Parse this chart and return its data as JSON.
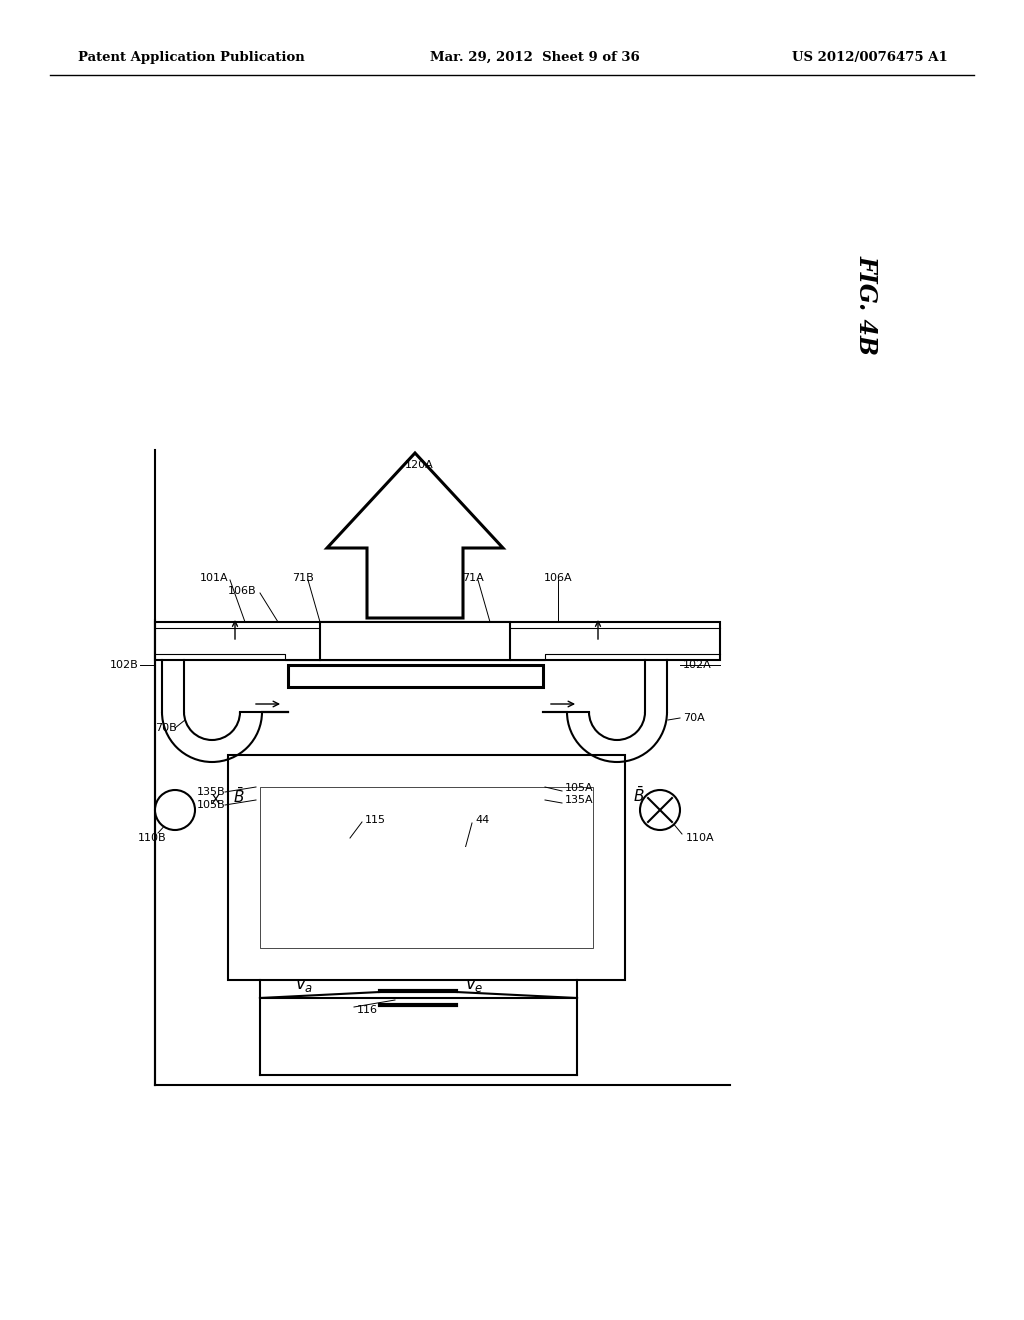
{
  "bg_color": "#ffffff",
  "lc": "#000000",
  "header_left": "Patent Application Publication",
  "header_mid": "Mar. 29, 2012  Sheet 9 of 36",
  "header_right": "US 2012/0076475 A1",
  "fig_label": "FIG. 4B"
}
